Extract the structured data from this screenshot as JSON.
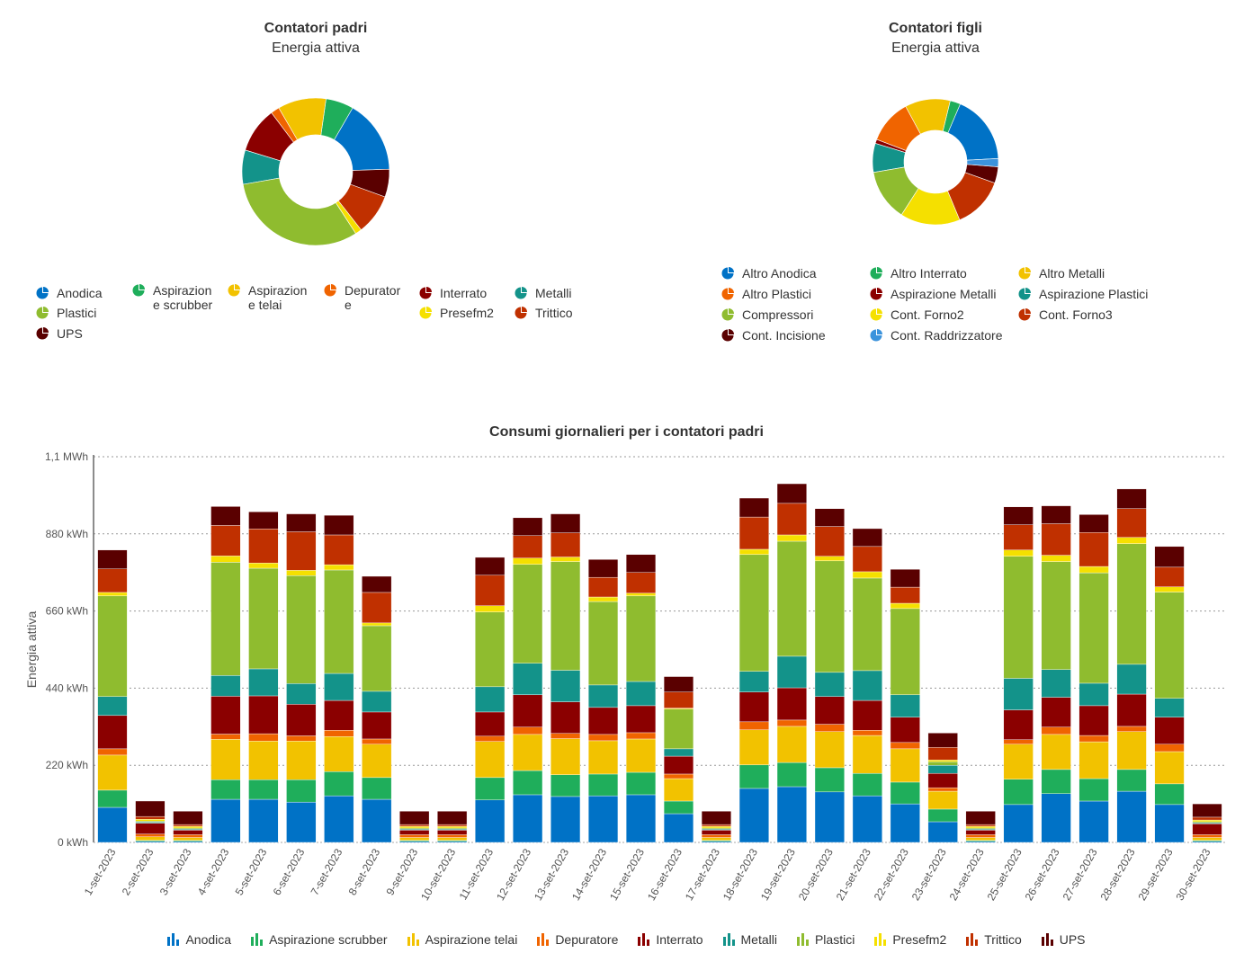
{
  "pie_padri": {
    "title": "Contatori padri",
    "subtitle": "Energia attiva"
  },
  "pie_figli": {
    "title": "Contatori figli",
    "subtitle": "Energia attiva"
  },
  "bar": {
    "title": "Consumi giornalieri per i contatori padri"
  },
  "colors": {
    "Anodica": "#0072c6",
    "Aspirazione scrubber": "#1fae5b",
    "Aspirazione telai": "#f2c200",
    "Depuratore": "#f06400",
    "Interrato": "#8b0000",
    "Metalli": "#13938a",
    "Plastici": "#8fbc2f",
    "Presefm2": "#f5e000",
    "Trittico": "#c03000",
    "UPS": "#5a0000",
    "Altro Anodica": "#0072c6",
    "Altro Interrato": "#1fae5b",
    "Altro Metalli": "#f2c200",
    "Altro Plastici": "#f06400",
    "Aspirazione Metalli": "#8b0000",
    "Aspirazione Plastici": "#13938a",
    "Compressori": "#8fbc2f",
    "Cont. Forno2": "#f5e000",
    "Cont. Forno3": "#c03000",
    "Cont. Incisione": "#5a0000",
    "Cont. Raddrizzatore": "#3c93dc"
  },
  "chart_data": [
    {
      "type": "pie",
      "title": "Contatori padri",
      "subtitle": "Energia attiva",
      "donut": true,
      "unit": "percent",
      "labels": [
        "Anodica",
        "Aspirazione scrubber",
        "Aspirazione telai",
        "Depuratore",
        "Interrato",
        "Metalli",
        "Plastici",
        "Presefm2",
        "Trittico",
        "UPS"
      ],
      "values": [
        16.1,
        6.1,
        10.6,
        1.9,
        10.0,
        7.5,
        31.4,
        1.4,
        8.9,
        6.1
      ],
      "legend_position": "bottom",
      "legend_labels": [
        "Anodica",
        "Aspirazion e scrubber",
        "Aspirazion e telai",
        "Depurator e",
        "Interrato",
        "Metalli",
        "Plastici",
        "Presefm2",
        "Trittico",
        "UPS"
      ]
    },
    {
      "type": "pie",
      "title": "Contatori figli",
      "subtitle": "Energia attiva",
      "donut": true,
      "unit": "percent",
      "labels": [
        "Altro Anodica",
        "Altro Interrato",
        "Altro Metalli",
        "Altro Plastici",
        "Aspirazione Metalli",
        "Aspirazione Plastici",
        "Compressori",
        "Cont. Forno2",
        "Cont. Forno3",
        "Cont. Incisione",
        "Cont. Raddrizzatore"
      ],
      "values": [
        18.6,
        2.8,
        12.2,
        11.9,
        1.1,
        7.8,
        13.9,
        16.1,
        13.9,
        4.4,
        2.2
      ],
      "legend_position": "bottom"
    },
    {
      "type": "bar",
      "stacked": true,
      "title": "Consumi giornalieri per i contatori padri",
      "xlabel": "",
      "ylabel": "Energia attiva",
      "ylim": [
        0,
        1100
      ],
      "yunit": "kWh",
      "yticks": [
        0,
        220,
        440,
        660,
        880,
        1100
      ],
      "ytick_labels": [
        "0 kWh",
        "220 kWh",
        "440 kWh",
        "660 kWh",
        "880 kWh",
        "1,1 MWh"
      ],
      "grid": true,
      "legend_position": "bottom",
      "categories": [
        "1-set-2023",
        "2-set-2023",
        "3-set-2023",
        "4-set-2023",
        "5-set-2023",
        "6-set-2023",
        "7-set-2023",
        "8-set-2023",
        "9-set-2023",
        "10-set-2023",
        "11-set-2023",
        "12-set-2023",
        "13-set-2023",
        "14-set-2023",
        "15-set-2023",
        "16-set-2023",
        "17-set-2023",
        "18-set-2023",
        "19-set-2023",
        "20-set-2023",
        "21-set-2023",
        "22-set-2023",
        "23-set-2023",
        "24-set-2023",
        "25-set-2023",
        "26-set-2023",
        "27-set-2023",
        "28-set-2023",
        "29-set-2023",
        "30-set-2023"
      ],
      "series": [
        {
          "name": "Anodica",
          "values": [
            100,
            3,
            3,
            123,
            123,
            115,
            133,
            123,
            3,
            3,
            121,
            136,
            131,
            133,
            136,
            82,
            3,
            154,
            159,
            144,
            133,
            110,
            59,
            3,
            108,
            139,
            118,
            146,
            108,
            3
          ]
        },
        {
          "name": "Aspirazione scrubber",
          "values": [
            49,
            3,
            3,
            56,
            56,
            64,
            69,
            62,
            3,
            3,
            64,
            69,
            62,
            62,
            64,
            36,
            3,
            67,
            69,
            69,
            64,
            62,
            36,
            3,
            72,
            69,
            64,
            62,
            59,
            3
          ]
        },
        {
          "name": "Aspirazione telai",
          "values": [
            100,
            10,
            8,
            115,
            110,
            110,
            100,
            95,
            8,
            8,
            103,
            103,
            103,
            95,
            95,
            64,
            8,
            100,
            103,
            103,
            108,
            95,
            51,
            8,
            100,
            100,
            105,
            108,
            92,
            8
          ]
        },
        {
          "name": "Depuratore",
          "values": [
            18,
            8,
            8,
            15,
            21,
            15,
            18,
            15,
            8,
            8,
            15,
            21,
            15,
            18,
            18,
            13,
            8,
            23,
            18,
            21,
            15,
            18,
            10,
            8,
            13,
            21,
            18,
            15,
            21,
            8
          ]
        },
        {
          "name": "Interrato",
          "values": [
            95,
            31,
            13,
            108,
            108,
            90,
            85,
            77,
            13,
            13,
            69,
            92,
            90,
            77,
            77,
            51,
            13,
            85,
            92,
            79,
            85,
            72,
            41,
            13,
            85,
            85,
            85,
            92,
            77,
            31
          ]
        },
        {
          "name": "Metalli",
          "values": [
            54,
            3,
            3,
            59,
            77,
            59,
            77,
            59,
            3,
            3,
            72,
            90,
            90,
            64,
            69,
            21,
            3,
            59,
            90,
            69,
            85,
            64,
            23,
            3,
            90,
            79,
            64,
            85,
            54,
            3
          ]
        },
        {
          "name": "Plastici",
          "values": [
            287,
            3,
            3,
            323,
            287,
            308,
            295,
            187,
            3,
            3,
            213,
            282,
            310,
            238,
            244,
            113,
            3,
            333,
            328,
            318,
            264,
            246,
            10,
            3,
            348,
            308,
            315,
            344,
            303,
            3
          ]
        },
        {
          "name": "Presefm2",
          "values": [
            10,
            5,
            5,
            18,
            15,
            15,
            15,
            8,
            5,
            5,
            18,
            18,
            13,
            13,
            8,
            3,
            5,
            15,
            18,
            13,
            18,
            15,
            5,
            5,
            18,
            18,
            18,
            18,
            15,
            5
          ]
        },
        {
          "name": "Trittico",
          "values": [
            67,
            8,
            5,
            87,
            97,
            110,
            85,
            87,
            5,
            5,
            87,
            64,
            69,
            56,
            59,
            46,
            5,
            92,
            90,
            85,
            72,
            46,
            36,
            5,
            72,
            90,
            97,
            82,
            56,
            8
          ]
        },
        {
          "name": "UPS",
          "values": [
            54,
            44,
            38,
            54,
            49,
            51,
            56,
            46,
            38,
            38,
            51,
            51,
            54,
            51,
            51,
            44,
            38,
            54,
            56,
            51,
            51,
            51,
            41,
            38,
            51,
            51,
            51,
            56,
            59,
            38
          ]
        }
      ]
    }
  ]
}
